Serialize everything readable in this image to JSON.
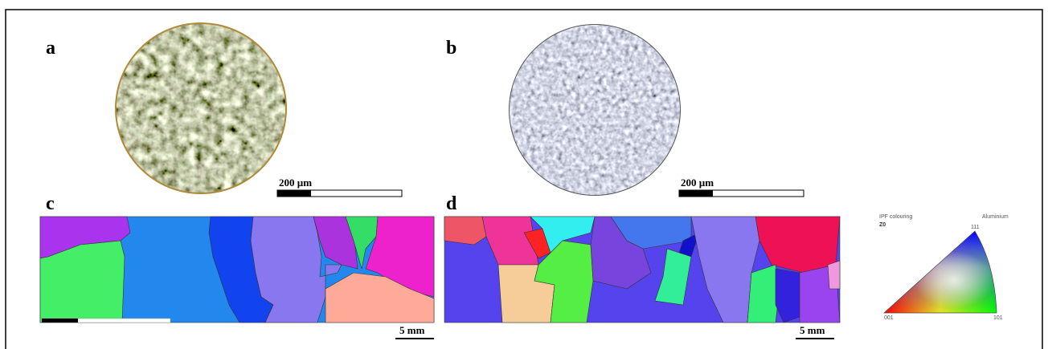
{
  "panels": [
    {
      "label": "a",
      "scale_bar": "200 µm"
    },
    {
      "label": "b",
      "scale_bar": "200 µm"
    },
    {
      "label": "c",
      "scale_bar": "5 mm"
    },
    {
      "label": "d",
      "scale_bar": "5 mm"
    }
  ],
  "ipf_key": {
    "title": "IPF colouring",
    "direction": "Z0",
    "phase": "Aluminium",
    "corners": [
      "001",
      "101",
      "111"
    ]
  }
}
